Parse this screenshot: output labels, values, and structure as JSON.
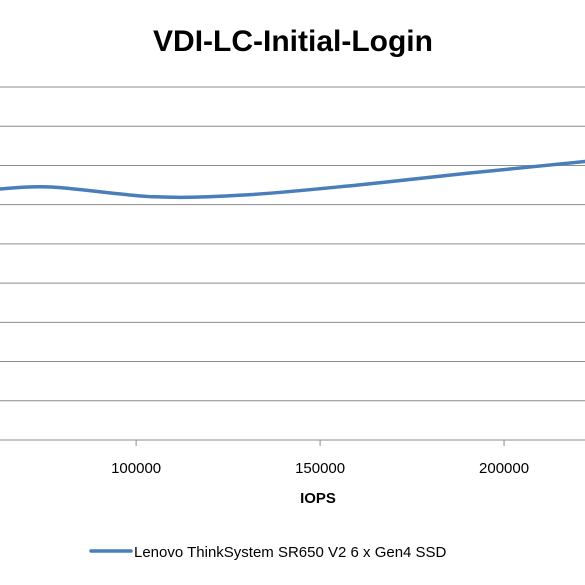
{
  "chart_data": {
    "type": "line",
    "title": "VDI-LC-Initial-Login",
    "xlabel": "IOPS",
    "ylabel": "",
    "xlim": [
      63000,
      222000
    ],
    "ylim": [
      0,
      9
    ],
    "x_ticks": [
      100000,
      150000,
      200000
    ],
    "x_tick_labels": [
      "100000",
      "150000",
      "200000"
    ],
    "gridlines": true,
    "legend_position": "bottom",
    "series": [
      {
        "name": "Lenovo ThinkSystem SR650 V2 6 x Gen4 SSD",
        "color": "#4a7ebb",
        "x": [
          63000,
          77000,
          105000,
          130000,
          160000,
          190000,
          222000
        ],
        "y": [
          6.4,
          6.45,
          6.2,
          6.25,
          6.5,
          6.8,
          7.1
        ]
      }
    ]
  }
}
